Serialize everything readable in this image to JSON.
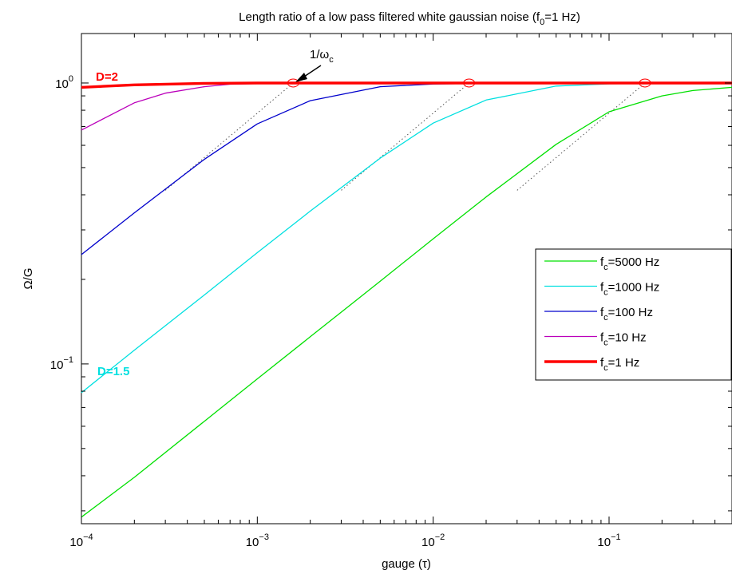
{
  "chart_data": {
    "type": "line",
    "title": "Length ratio of a low pass filtered white gaussian noise",
    "title_param": {
      "symbol": "f",
      "sub": "0",
      "value": "=1 Hz"
    },
    "xlabel": "gauge (τ)",
    "ylabel": "Ω/G",
    "x_scale": "log",
    "y_scale": "log",
    "xlim": [
      0.0001,
      0.5
    ],
    "ylim": [
      0.027,
      1.5
    ],
    "x_ticks": [
      {
        "value": 0.0001,
        "base": "10",
        "exp": "−4"
      },
      {
        "value": 0.001,
        "base": "10",
        "exp": "−3"
      },
      {
        "value": 0.01,
        "base": "10",
        "exp": "−2"
      },
      {
        "value": 0.1,
        "base": "10",
        "exp": "−1"
      }
    ],
    "y_ticks": [
      {
        "value": 0.1,
        "base": "10",
        "exp": "−1"
      },
      {
        "value": 1,
        "base": "10",
        "exp": "0"
      }
    ],
    "grid": false,
    "legend_position": "right",
    "series": [
      {
        "name": "f",
        "name_sub": "c",
        "name_rest": "=5000 Hz",
        "color": "#00e000",
        "width": 1.3,
        "x": [
          0.0001,
          0.0002,
          0.0005,
          0.001,
          0.002,
          0.005,
          0.01,
          0.02,
          0.05,
          0.1,
          0.2,
          0.3,
          0.5
        ],
        "y": [
          0.0285,
          0.0395,
          0.0625,
          0.0885,
          0.125,
          0.197,
          0.279,
          0.393,
          0.605,
          0.79,
          0.9,
          0.94,
          0.965
        ]
      },
      {
        "name": "f",
        "name_sub": "c",
        "name_rest": "=1000 Hz",
        "color": "#00e0e0",
        "width": 1.3,
        "x": [
          0.0001,
          0.0002,
          0.0005,
          0.001,
          0.002,
          0.005,
          0.01,
          0.02,
          0.05,
          0.1,
          0.2,
          0.5
        ],
        "y": [
          0.079,
          0.112,
          0.176,
          0.249,
          0.35,
          0.54,
          0.72,
          0.87,
          0.975,
          0.993,
          0.998,
          1.0
        ]
      },
      {
        "name": "f",
        "name_sub": "c",
        "name_rest": "=100 Hz",
        "color": "#0000cc",
        "width": 1.3,
        "x": [
          0.0001,
          0.0002,
          0.0005,
          0.001,
          0.002,
          0.005,
          0.01,
          0.02,
          0.05,
          0.1,
          0.5
        ],
        "y": [
          0.245,
          0.345,
          0.535,
          0.715,
          0.865,
          0.97,
          0.992,
          0.998,
          1.0,
          1.0,
          1.0
        ]
      },
      {
        "name": "f",
        "name_sub": "c",
        "name_rest": "=10 Hz",
        "color": "#bb00bb",
        "width": 1.3,
        "x": [
          0.0001,
          0.0002,
          0.0003,
          0.0005,
          0.0007,
          0.001,
          0.002,
          0.01,
          0.1,
          0.5
        ],
        "y": [
          0.68,
          0.85,
          0.92,
          0.97,
          0.99,
          0.995,
          0.999,
          1.0,
          1.0,
          1.0
        ]
      },
      {
        "name": "f",
        "name_sub": "c",
        "name_rest": "=1 Hz",
        "color": "#ff0000",
        "width": 3.4,
        "x": [
          0.0001,
          0.0002,
          0.0005,
          0.001,
          0.01,
          0.1,
          0.5
        ],
        "y": [
          0.965,
          0.985,
          0.997,
          1.0,
          1.0,
          1.0,
          1.0
        ]
      }
    ],
    "asymptotes": [
      {
        "color": "#555555",
        "x": [
          0.0003,
          0.0016
        ],
        "y": [
          0.415,
          1.0
        ]
      },
      {
        "color": "#555555",
        "x": [
          0.003,
          0.016
        ],
        "y": [
          0.415,
          1.0
        ]
      },
      {
        "color": "#555555",
        "x": [
          0.03,
          0.16
        ],
        "y": [
          0.415,
          1.0
        ]
      }
    ],
    "markers": [
      {
        "x": 0.0016,
        "y": 1.0,
        "color": "#ff0000"
      },
      {
        "x": 0.016,
        "y": 1.0,
        "color": "#ff0000"
      },
      {
        "x": 0.16,
        "y": 1.0,
        "color": "#ff0000"
      }
    ],
    "annotations": {
      "cutoff": {
        "text": "1/ω",
        "sub": "c",
        "x": 0.0016,
        "y": 1.0
      },
      "d2": {
        "text": "D=2",
        "color": "#ff0000"
      },
      "d15": {
        "text": "D=1.5",
        "color": "#00e0e0"
      }
    }
  }
}
